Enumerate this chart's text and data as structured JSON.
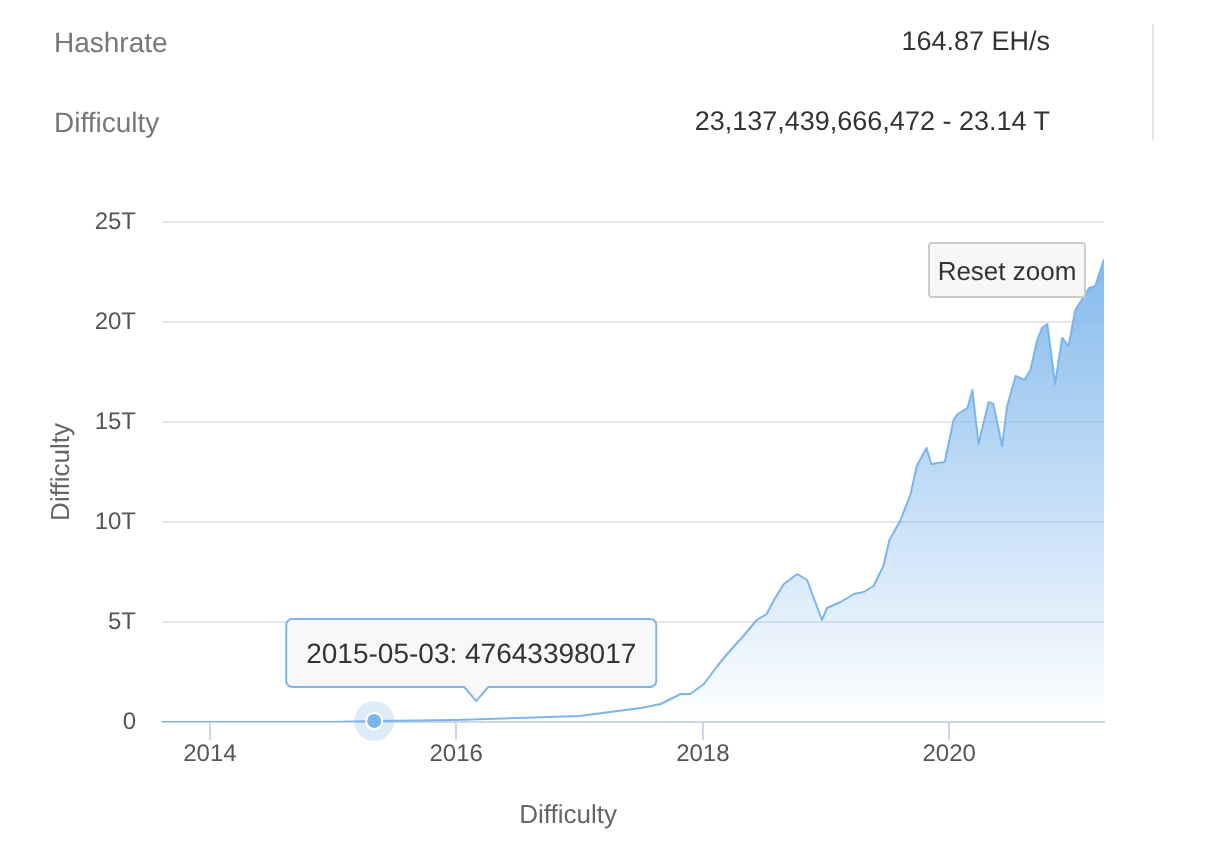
{
  "chart_data": {
    "type": "area",
    "xlabel": "Difficulty",
    "ylabel": "Difficulty",
    "color": "#7cb5ec",
    "grid": "y",
    "marker": "none",
    "xlim": [
      "2013-08-12",
      "2021-04-04"
    ],
    "xticks": [
      "2014",
      "2016",
      "2018",
      "2020"
    ],
    "ylim": [
      0,
      25000000000000
    ],
    "yticks": [
      0,
      {
        "value": 5000000000000,
        "label": "5T"
      },
      {
        "value": 10000000000000,
        "label": "10T"
      },
      {
        "value": 15000000000000,
        "label": "15T"
      },
      {
        "value": 20000000000000,
        "label": "20T"
      },
      {
        "value": 25000000000000,
        "label": "25T"
      }
    ],
    "x": [
      "2013-08-12",
      "2014-01-01",
      "2014-07-01",
      "2015-01-01",
      "2015-05-03",
      "2016-01-01",
      "2016-07-01",
      "2017-01-01",
      "2017-04-01",
      "2017-07-01",
      "2017-08-29",
      "2017-10-27",
      "2017-11-25",
      "2018-01-04",
      "2018-02-13",
      "2018-03-14",
      "2018-05-01",
      "2018-06-10",
      "2018-07-09",
      "2018-07-31",
      "2018-08-29",
      "2018-10-08",
      "2018-11-06",
      "2018-11-28",
      "2018-12-20",
      "2019-01-04",
      "2019-02-13",
      "2019-03-25",
      "2019-04-23",
      "2019-05-22",
      "2019-06-20",
      "2019-07-08",
      "2019-08-10",
      "2019-09-09",
      "2019-09-27",
      "2019-10-26",
      "2019-11-09",
      "2019-12-19",
      "2020-01-14",
      "2020-01-26",
      "2020-02-24",
      "2020-03-10",
      "2020-03-28",
      "2020-04-27",
      "2020-05-11",
      "2020-06-06",
      "2020-06-21",
      "2020-07-16",
      "2020-08-11",
      "2020-08-29",
      "2020-09-18",
      "2020-10-02",
      "2020-10-18",
      "2020-11-10",
      "2020-12-01",
      "2020-12-20",
      "2021-01-09",
      "2021-02-19",
      "2021-03-09",
      "2021-04-04"
    ],
    "values": [
      0,
      0,
      0,
      0,
      47643398017,
      100000000000,
      200000000000,
      300000000000,
      500000000000,
      700000000000,
      900000000000,
      1400000000000,
      1400000000000,
      1900000000000,
      2800000000000,
      3400000000000,
      4300000000000,
      5100000000000,
      5400000000000,
      6100000000000,
      6900000000000,
      7400000000000,
      7100000000000,
      6100000000000,
      5100000000000,
      5700000000000,
      6000000000000,
      6400000000000,
      6500000000000,
      6800000000000,
      7800000000000,
      9100000000000,
      10100000000000,
      11400000000000,
      12800000000000,
      13700000000000,
      12900000000000,
      13000000000000,
      15100000000000,
      15400000000000,
      15700000000000,
      16600000000000,
      13900000000000,
      16000000000000,
      15900000000000,
      13800000000000,
      15800000000000,
      17300000000000,
      17100000000000,
      17600000000000,
      19100000000000,
      19700000000000,
      19900000000000,
      16900000000000,
      19200000000000,
      18800000000000,
      20600000000000,
      21700000000000,
      21800000000000,
      23137439666472
    ],
    "annotations": [
      "Hashrate",
      "164.87 EH/s",
      "Difficulty",
      "23,137,439,666,472 - 23.14 T",
      {
        "text": "2015-05-03: 47643398017",
        "x": "2015-05-03",
        "y": 47643398017
      },
      "Reset zoom"
    ]
  }
}
